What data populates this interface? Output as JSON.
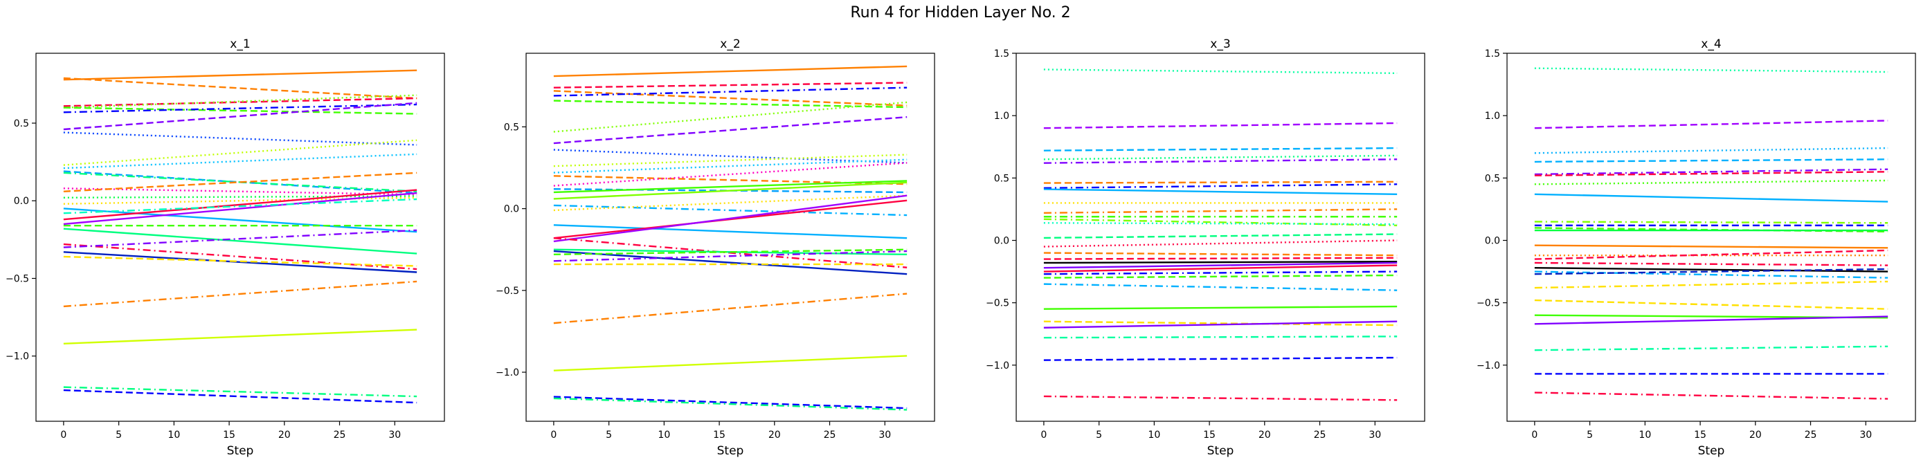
{
  "suptitle": "Run 4 for Hidden Layer No. 2",
  "chart_data": [
    {
      "type": "line",
      "title": "x_1",
      "xlabel": "Step",
      "ylabel": "",
      "xlim": [
        -2.5,
        34.5
      ],
      "ylim": [
        -1.42,
        0.95
      ],
      "xticks": [
        0,
        5,
        10,
        15,
        20,
        25,
        30
      ],
      "yticks": [
        -1.0,
        -0.5,
        0.0,
        0.5
      ],
      "x": [
        0,
        32
      ],
      "series": [
        {
          "values": [
            0.78,
            0.84
          ],
          "color": "#ff8000",
          "dash": "solid"
        },
        {
          "values": [
            0.79,
            0.66
          ],
          "color": "#ff8000",
          "dash": "dashed"
        },
        {
          "values": [
            0.61,
            0.66
          ],
          "color": "#ff0040",
          "dash": "dashed"
        },
        {
          "values": [
            0.6,
            0.68
          ],
          "color": "#80ff00",
          "dash": "dotted"
        },
        {
          "values": [
            0.6,
            0.56
          ],
          "color": "#40ff00",
          "dash": "dashed"
        },
        {
          "values": [
            0.57,
            0.62
          ],
          "color": "#0000ff",
          "dash": "dashdot"
        },
        {
          "values": [
            0.46,
            0.63
          ],
          "color": "#8000ff",
          "dash": "dashed"
        },
        {
          "values": [
            0.44,
            0.36
          ],
          "color": "#0040ff",
          "dash": "dotted"
        },
        {
          "values": [
            0.23,
            0.39
          ],
          "color": "#c0ff00",
          "dash": "dotted"
        },
        {
          "values": [
            0.21,
            0.3
          ],
          "color": "#00c0ff",
          "dash": "dotted"
        },
        {
          "values": [
            0.19,
            0.05
          ],
          "color": "#00a0ff",
          "dash": "dashed"
        },
        {
          "values": [
            0.18,
            0.06
          ],
          "color": "#00ff80",
          "dash": "dashdot"
        },
        {
          "values": [
            0.08,
            0.04
          ],
          "color": "#ff00c0",
          "dash": "dotted"
        },
        {
          "values": [
            0.06,
            0.18
          ],
          "color": "#ff8000",
          "dash": "dashed"
        },
        {
          "values": [
            0.02,
            0.03
          ],
          "color": "#00ff40",
          "dash": "dotted"
        },
        {
          "values": [
            -0.02,
            0.02
          ],
          "color": "#ffe000",
          "dash": "dotted"
        },
        {
          "values": [
            -0.05,
            -0.2
          ],
          "color": "#00b0ff",
          "dash": "solid"
        },
        {
          "values": [
            -0.12,
            0.07
          ],
          "color": "#ff0040",
          "dash": "solid"
        },
        {
          "values": [
            -0.15,
            0.05
          ],
          "color": "#a000ff",
          "dash": "solid"
        },
        {
          "values": [
            -0.08,
            0.01
          ],
          "color": "#00ffc0",
          "dash": "dashdot"
        },
        {
          "values": [
            -0.16,
            -0.16
          ],
          "color": "#40ff00",
          "dash": "dashed"
        },
        {
          "values": [
            -0.18,
            -0.34
          ],
          "color": "#00ff80",
          "dash": "solid"
        },
        {
          "values": [
            -0.28,
            -0.44
          ],
          "color": "#ff0040",
          "dash": "dashdot"
        },
        {
          "values": [
            -0.3,
            -0.19
          ],
          "color": "#8000ff",
          "dash": "dashdot"
        },
        {
          "values": [
            -0.33,
            -0.46
          ],
          "color": "#0020c0",
          "dash": "solid"
        },
        {
          "values": [
            -0.36,
            -0.42
          ],
          "color": "#ffe000",
          "dash": "dashed"
        },
        {
          "values": [
            -0.68,
            -0.52
          ],
          "color": "#ff8000",
          "dash": "dashdot"
        },
        {
          "values": [
            -0.92,
            -0.83
          ],
          "color": "#d0ff00",
          "dash": "solid"
        },
        {
          "values": [
            -1.2,
            -1.26
          ],
          "color": "#00ff80",
          "dash": "dashdot"
        },
        {
          "values": [
            -1.22,
            -1.3
          ],
          "color": "#0000ff",
          "dash": "dashed"
        }
      ]
    },
    {
      "type": "line",
      "title": "x_2",
      "xlabel": "Step",
      "ylabel": "",
      "xlim": [
        -2.5,
        34.5
      ],
      "ylim": [
        -1.3,
        0.95
      ],
      "xticks": [
        0,
        5,
        10,
        15,
        20,
        25,
        30
      ],
      "yticks": [
        -1.0,
        -0.5,
        0.0,
        0.5
      ],
      "x": [
        0,
        32
      ],
      "series": [
        {
          "values": [
            0.81,
            0.87
          ],
          "color": "#ff8000",
          "dash": "solid"
        },
        {
          "values": [
            0.74,
            0.77
          ],
          "color": "#ff0040",
          "dash": "dashed"
        },
        {
          "values": [
            0.72,
            0.63
          ],
          "color": "#ff8000",
          "dash": "dashed"
        },
        {
          "values": [
            0.69,
            0.74
          ],
          "color": "#0000ff",
          "dash": "dashdot"
        },
        {
          "values": [
            0.66,
            0.62
          ],
          "color": "#40ff00",
          "dash": "dashed"
        },
        {
          "values": [
            0.47,
            0.65
          ],
          "color": "#80ff00",
          "dash": "dotted"
        },
        {
          "values": [
            0.4,
            0.56
          ],
          "color": "#8000ff",
          "dash": "dashed"
        },
        {
          "values": [
            0.36,
            0.28
          ],
          "color": "#0040ff",
          "dash": "dotted"
        },
        {
          "values": [
            0.26,
            0.33
          ],
          "color": "#c0ff00",
          "dash": "dotted"
        },
        {
          "values": [
            0.22,
            0.3
          ],
          "color": "#00c0ff",
          "dash": "dotted"
        },
        {
          "values": [
            0.2,
            0.15
          ],
          "color": "#ff8000",
          "dash": "dashed"
        },
        {
          "values": [
            0.14,
            0.28
          ],
          "color": "#ff00c0",
          "dash": "dotted"
        },
        {
          "values": [
            0.12,
            0.1
          ],
          "color": "#00a0ff",
          "dash": "dashed"
        },
        {
          "values": [
            0.1,
            0.17
          ],
          "color": "#40ff00",
          "dash": "solid"
        },
        {
          "values": [
            0.06,
            0.16
          ],
          "color": "#80ff00",
          "dash": "solid"
        },
        {
          "values": [
            0.02,
            -0.04
          ],
          "color": "#00b0ff",
          "dash": "dashdot"
        },
        {
          "values": [
            -0.01,
            0.08
          ],
          "color": "#ffe000",
          "dash": "dotted"
        },
        {
          "values": [
            -0.1,
            -0.18
          ],
          "color": "#00b0ff",
          "dash": "solid"
        },
        {
          "values": [
            -0.18,
            0.05
          ],
          "color": "#ff0040",
          "dash": "solid"
        },
        {
          "values": [
            -0.2,
            0.08
          ],
          "color": "#a000ff",
          "dash": "solid"
        },
        {
          "values": [
            -0.18,
            -0.36
          ],
          "color": "#ff0040",
          "dash": "dashdot"
        },
        {
          "values": [
            -0.25,
            -0.28
          ],
          "color": "#00ff80",
          "dash": "solid"
        },
        {
          "values": [
            -0.26,
            -0.4
          ],
          "color": "#0020c0",
          "dash": "solid"
        },
        {
          "values": [
            -0.28,
            -0.25
          ],
          "color": "#40ff00",
          "dash": "dashed"
        },
        {
          "values": [
            -0.32,
            -0.26
          ],
          "color": "#8000ff",
          "dash": "dashdot"
        },
        {
          "values": [
            -0.34,
            -0.34
          ],
          "color": "#ffe000",
          "dash": "dashed"
        },
        {
          "values": [
            -0.7,
            -0.52
          ],
          "color": "#ff8000",
          "dash": "dashdot"
        },
        {
          "values": [
            -0.99,
            -0.9
          ],
          "color": "#d0ff00",
          "dash": "solid"
        },
        {
          "values": [
            -1.15,
            -1.22
          ],
          "color": "#0000ff",
          "dash": "dashed"
        },
        {
          "values": [
            -1.16,
            -1.23
          ],
          "color": "#00ff80",
          "dash": "dashdot"
        }
      ]
    },
    {
      "type": "line",
      "title": "x_3",
      "xlabel": "Step",
      "ylabel": "",
      "xlim": [
        -2.5,
        34.5
      ],
      "ylim": [
        -1.45,
        1.5
      ],
      "xticks": [
        0,
        5,
        10,
        15,
        20,
        25,
        30
      ],
      "yticks": [
        -1.0,
        -0.5,
        0.0,
        0.5,
        1.0,
        1.5
      ],
      "x": [
        0,
        32
      ],
      "series": [
        {
          "values": [
            1.37,
            1.34
          ],
          "color": "#00ffa0",
          "dash": "dotted"
        },
        {
          "values": [
            0.9,
            0.94
          ],
          "color": "#a000ff",
          "dash": "dashed"
        },
        {
          "values": [
            0.72,
            0.74
          ],
          "color": "#00b0ff",
          "dash": "dashed"
        },
        {
          "values": [
            0.65,
            0.68
          ],
          "color": "#00ff80",
          "dash": "dotted"
        },
        {
          "values": [
            0.62,
            0.65
          ],
          "color": "#8000ff",
          "dash": "dashdot"
        },
        {
          "values": [
            0.46,
            0.47
          ],
          "color": "#ff8000",
          "dash": "dashed"
        },
        {
          "values": [
            0.42,
            0.45
          ],
          "color": "#0000ff",
          "dash": "dashdot"
        },
        {
          "values": [
            0.41,
            0.37
          ],
          "color": "#00b0ff",
          "dash": "solid"
        },
        {
          "values": [
            0.3,
            0.3
          ],
          "color": "#ffe000",
          "dash": "dotted"
        },
        {
          "values": [
            0.22,
            0.25
          ],
          "color": "#ff8000",
          "dash": "dashdot"
        },
        {
          "values": [
            0.19,
            0.19
          ],
          "color": "#40ff00",
          "dash": "dashdot"
        },
        {
          "values": [
            0.17,
            0.12
          ],
          "color": "#80ff00",
          "dash": "dashdot"
        },
        {
          "values": [
            0.14,
            0.13
          ],
          "color": "#00ffc0",
          "dash": "dotted"
        },
        {
          "values": [
            0.02,
            0.05
          ],
          "color": "#00ff80",
          "dash": "dashed"
        },
        {
          "values": [
            -0.05,
            0.0
          ],
          "color": "#ff0040",
          "dash": "dotted"
        },
        {
          "values": [
            -0.1,
            -0.12
          ],
          "color": "#ff8000",
          "dash": "dashed"
        },
        {
          "values": [
            -0.15,
            -0.14
          ],
          "color": "#ff0040",
          "dash": "dashed"
        },
        {
          "values": [
            -0.18,
            -0.17
          ],
          "color": "#000000",
          "dash": "solid"
        },
        {
          "values": [
            -0.22,
            -0.18
          ],
          "color": "#8000ff",
          "dash": "solid"
        },
        {
          "values": [
            -0.25,
            -0.2
          ],
          "color": "#ff0040",
          "dash": "solid"
        },
        {
          "values": [
            -0.27,
            -0.25
          ],
          "color": "#0000ff",
          "dash": "dashdot"
        },
        {
          "values": [
            -0.3,
            -0.28
          ],
          "color": "#40ff00",
          "dash": "dashed"
        },
        {
          "values": [
            -0.35,
            -0.4
          ],
          "color": "#00b0ff",
          "dash": "dashdot"
        },
        {
          "values": [
            -0.55,
            -0.53
          ],
          "color": "#40ff00",
          "dash": "solid"
        },
        {
          "values": [
            -0.65,
            -0.68
          ],
          "color": "#ffe000",
          "dash": "dashed"
        },
        {
          "values": [
            -0.7,
            -0.65
          ],
          "color": "#8000ff",
          "dash": "solid"
        },
        {
          "values": [
            -0.78,
            -0.77
          ],
          "color": "#00ffa0",
          "dash": "dashdot"
        },
        {
          "values": [
            -0.96,
            -0.94
          ],
          "color": "#0000ff",
          "dash": "dashed"
        },
        {
          "values": [
            -1.25,
            -1.28
          ],
          "color": "#ff0040",
          "dash": "dashdot"
        }
      ]
    },
    {
      "type": "line",
      "title": "x_4",
      "xlabel": "Step",
      "ylabel": "",
      "xlim": [
        -2.5,
        34.5
      ],
      "ylim": [
        -1.45,
        1.5
      ],
      "xticks": [
        0,
        5,
        10,
        15,
        20,
        25,
        30
      ],
      "yticks": [
        -1.0,
        -0.5,
        0.0,
        0.5,
        1.0,
        1.5
      ],
      "x": [
        0,
        32
      ],
      "series": [
        {
          "values": [
            1.38,
            1.35
          ],
          "color": "#00ffa0",
          "dash": "dotted"
        },
        {
          "values": [
            0.9,
            0.96
          ],
          "color": "#a000ff",
          "dash": "dashed"
        },
        {
          "values": [
            0.7,
            0.74
          ],
          "color": "#00b0ff",
          "dash": "dotted"
        },
        {
          "values": [
            0.63,
            0.65
          ],
          "color": "#00b0ff",
          "dash": "dashed"
        },
        {
          "values": [
            0.53,
            0.57
          ],
          "color": "#8000ff",
          "dash": "dashdot"
        },
        {
          "values": [
            0.52,
            0.55
          ],
          "color": "#ff0040",
          "dash": "dashed"
        },
        {
          "values": [
            0.45,
            0.48
          ],
          "color": "#40ff00",
          "dash": "dotted"
        },
        {
          "values": [
            0.37,
            0.31
          ],
          "color": "#00b0ff",
          "dash": "solid"
        },
        {
          "values": [
            0.15,
            0.14
          ],
          "color": "#80ff00",
          "dash": "dashdot"
        },
        {
          "values": [
            0.12,
            0.12
          ],
          "color": "#0000ff",
          "dash": "dashed"
        },
        {
          "values": [
            0.1,
            0.07
          ],
          "color": "#40ff00",
          "dash": "dashed"
        },
        {
          "values": [
            0.08,
            0.08
          ],
          "color": "#00ff40",
          "dash": "solid"
        },
        {
          "values": [
            -0.04,
            -0.06
          ],
          "color": "#ff8000",
          "dash": "solid"
        },
        {
          "values": [
            -0.12,
            -0.12
          ],
          "color": "#ff8000",
          "dash": "dotted"
        },
        {
          "values": [
            -0.15,
            -0.08
          ],
          "color": "#ff0040",
          "dash": "dashed"
        },
        {
          "values": [
            -0.18,
            -0.2
          ],
          "color": "#ff0040",
          "dash": "dashdot"
        },
        {
          "values": [
            -0.22,
            -0.25
          ],
          "color": "#000000",
          "dash": "solid"
        },
        {
          "values": [
            -0.25,
            -0.3
          ],
          "color": "#00b0ff",
          "dash": "dashdot"
        },
        {
          "values": [
            -0.27,
            -0.23
          ],
          "color": "#0020c0",
          "dash": "dashed"
        },
        {
          "values": [
            -0.38,
            -0.33
          ],
          "color": "#ffe000",
          "dash": "dashdot"
        },
        {
          "values": [
            -0.48,
            -0.55
          ],
          "color": "#ffe000",
          "dash": "dashed"
        },
        {
          "values": [
            -0.6,
            -0.62
          ],
          "color": "#40ff00",
          "dash": "solid"
        },
        {
          "values": [
            -0.67,
            -0.61
          ],
          "color": "#8000ff",
          "dash": "solid"
        },
        {
          "values": [
            -0.88,
            -0.85
          ],
          "color": "#00ffa0",
          "dash": "dashdot"
        },
        {
          "values": [
            -1.07,
            -1.07
          ],
          "color": "#0000ff",
          "dash": "dashed"
        },
        {
          "values": [
            -1.22,
            -1.27
          ],
          "color": "#ff0040",
          "dash": "dashdot"
        }
      ]
    }
  ]
}
